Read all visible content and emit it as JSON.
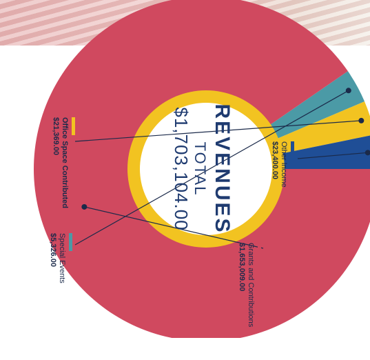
{
  "chart_data": {
    "type": "pie",
    "title": "REVENUES",
    "subtitle": "TOTAL",
    "total": "$1,703,104.00",
    "slices": [
      {
        "label": "Special Events",
        "value_text": "$5,326.00",
        "value": 5326,
        "color": "#4b9aa6"
      },
      {
        "label": "Office Space Contributed",
        "value_text": "$21,369.00",
        "value": 21369,
        "color": "#f2c321"
      },
      {
        "label": "Other Income",
        "value_text": "$23,400.00",
        "value": 23400,
        "color": "#1f4e96"
      },
      {
        "label": "Grants and Contributions",
        "value_text": "$1,653,009.00",
        "value": 1653009,
        "color": "#d0495f"
      }
    ]
  },
  "colors": {
    "ring": "#f2c321",
    "center_text": "#1f3b70"
  }
}
